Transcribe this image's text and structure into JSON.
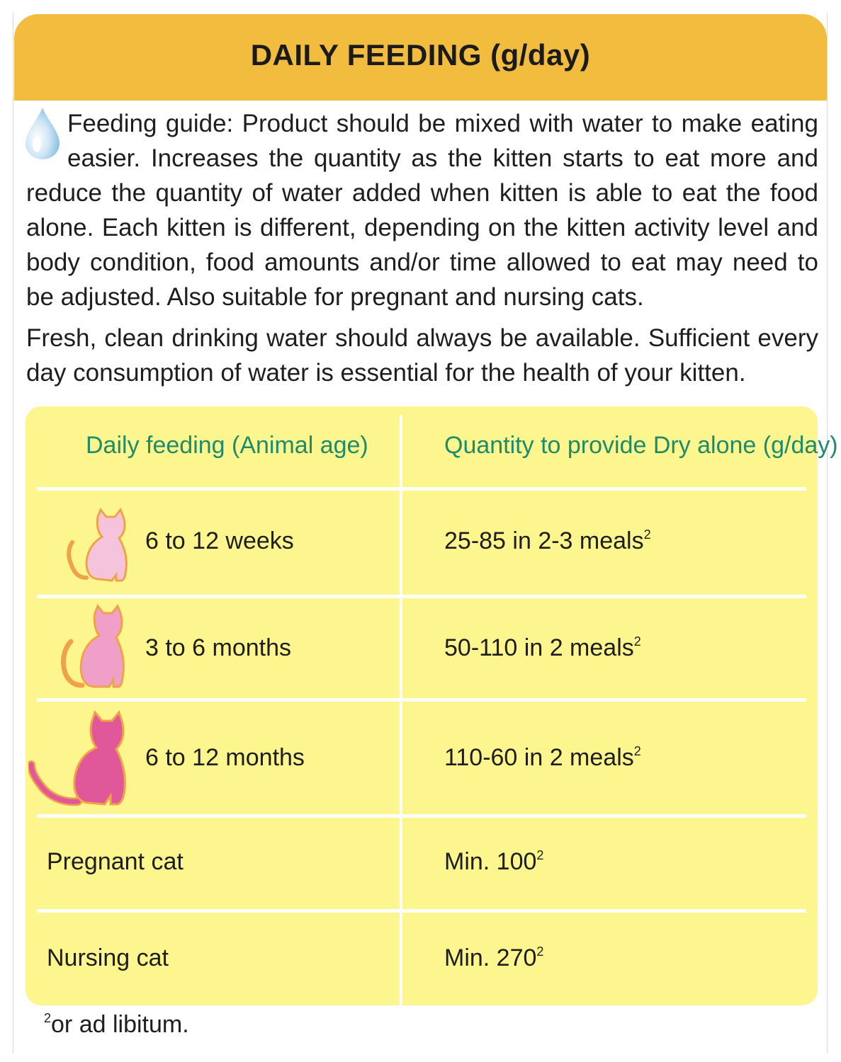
{
  "header": {
    "title": "DAILY FEEDING (g/day)"
  },
  "intro": {
    "paragraph1": "Feeding guide: Product should be mixed with water to make eating easier. Increases the quantity as the kitten starts to eat more and reduce the quantity of water added when kitten is able to eat the food alone. Each kitten is different, depending on the kitten activity level and body condition, food amounts and/or time allowed to eat may need to be adjusted. Also suitable for pregnant and nursing cats.",
    "paragraph2": "Fresh, clean drinking water should always be available. Sufficient every day consumption of water is essential for the health of your kitten."
  },
  "table": {
    "headers": [
      "Daily feeding (Animal age)",
      "Quantity to provide Dry alone (g/day)"
    ],
    "rows": [
      {
        "age": "6 to 12 weeks",
        "quantity": "25-85 in 2-3 meals",
        "sup": "2",
        "icon": "small-kitten-icon"
      },
      {
        "age": "3 to 6 months",
        "quantity": "50-110 in 2 meals",
        "sup": "2",
        "icon": "young-cat-icon"
      },
      {
        "age": "6 to 12 months",
        "quantity": "110-60 in 2 meals",
        "sup": "2",
        "icon": "adult-cat-icon"
      },
      {
        "age": "Pregnant cat",
        "quantity": "Min. 100",
        "sup": "2"
      },
      {
        "age": "Nursing cat",
        "quantity": "Min. 270",
        "sup": "2"
      }
    ]
  },
  "footnote": {
    "marker": "2",
    "text": "or ad libitum."
  },
  "colors": {
    "header_bg": "#f2bc3e",
    "table_bg": "#fdf58e",
    "column_header_text": "#1e8c6c",
    "kitten_small": "#f6c3dc",
    "kitten_medium": "#ef9fc8",
    "kitten_large": "#e0589a",
    "cat_outline": "#f0a24a"
  }
}
